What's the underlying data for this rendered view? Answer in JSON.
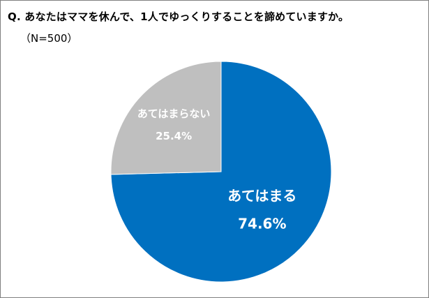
{
  "title": "Q. あなたはママを休んで、1人でゆっくりすることを諦めていますか。",
  "subtitle": "（N=500）",
  "chart_data": {
    "type": "pie",
    "slices": [
      {
        "label": "あてはまる",
        "value": 74.6,
        "value_label": "74.6%",
        "color": "#0070c0"
      },
      {
        "label": "あてはまらない",
        "value": 25.4,
        "value_label": "25.4%",
        "color": "#bfbfbf"
      }
    ],
    "start_angle": "12 o'clock",
    "direction": "clockwise",
    "legend": "none"
  }
}
